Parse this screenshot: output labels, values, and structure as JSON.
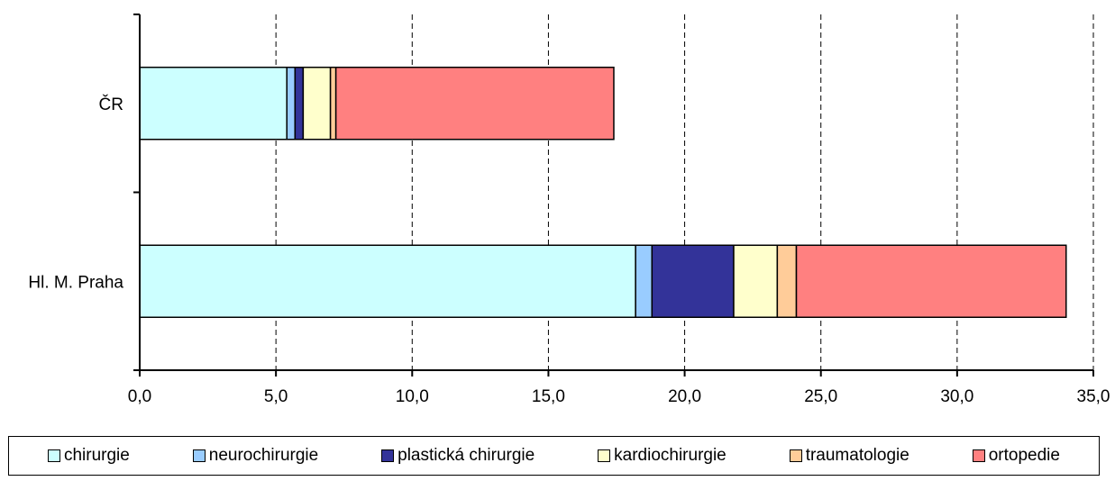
{
  "chart_data": {
    "type": "bar",
    "orientation": "horizontal",
    "stacked": true,
    "categories": [
      "ČR",
      "Hl. M. Praha"
    ],
    "series": [
      {
        "name": "chirurgie",
        "color": "#ccffff",
        "values": [
          5.4,
          18.2
        ]
      },
      {
        "name": "neurochirurgie",
        "color": "#99ccff",
        "values": [
          0.3,
          0.6
        ]
      },
      {
        "name": "plastická chirurgie",
        "color": "#333399",
        "values": [
          0.3,
          3.0
        ]
      },
      {
        "name": "kardiochirurgie",
        "color": "#ffffcc",
        "values": [
          1.0,
          1.6
        ]
      },
      {
        "name": "traumatologie",
        "color": "#ffcc99",
        "values": [
          0.2,
          0.7
        ]
      },
      {
        "name": "ortopedie",
        "color": "#ff8080",
        "values": [
          10.2,
          9.9
        ]
      }
    ],
    "xlim": [
      0,
      35
    ],
    "xticks": [
      "0,0",
      "5,0",
      "10,0",
      "15,0",
      "20,0",
      "25,0",
      "30,0",
      "35,0"
    ],
    "grid": "vertical dashed",
    "legend_position": "bottom"
  }
}
